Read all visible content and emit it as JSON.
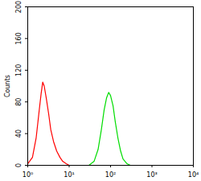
{
  "chart_data": {
    "type": "line",
    "y_label": "Counts",
    "log": "x",
    "xlim": [
      1,
      10000
    ],
    "xticks": [
      {
        "value": 1,
        "label": "10⁰"
      },
      {
        "value": 10,
        "label": "10¹"
      },
      {
        "value": 100,
        "label": "10²"
      },
      {
        "value": 1000,
        "label": "10³"
      },
      {
        "value": 10000,
        "label": "10⁴"
      }
    ],
    "ylim": [
      0,
      200
    ],
    "yticks": [
      0,
      40,
      80,
      120,
      160,
      200
    ],
    "series": [
      {
        "color": "#ff0000",
        "x": [
          1,
          1.3,
          1.6,
          1.9,
          2.1,
          2.3,
          2.5,
          2.8,
          3.2,
          3.6,
          4.2,
          5,
          6,
          7,
          8.5,
          10
        ],
        "values": [
          2,
          10,
          35,
          70,
          90,
          105,
          100,
          85,
          65,
          45,
          30,
          18,
          10,
          5,
          2,
          0
        ]
      },
      {
        "color": "#00dd00",
        "x": [
          30,
          40,
          50,
          60,
          70,
          80,
          90,
          100,
          115,
          130,
          150,
          175,
          200,
          250,
          300
        ],
        "values": [
          0,
          5,
          20,
          45,
          70,
          85,
          92,
          88,
          75,
          55,
          35,
          18,
          8,
          2,
          0
        ]
      }
    ]
  }
}
